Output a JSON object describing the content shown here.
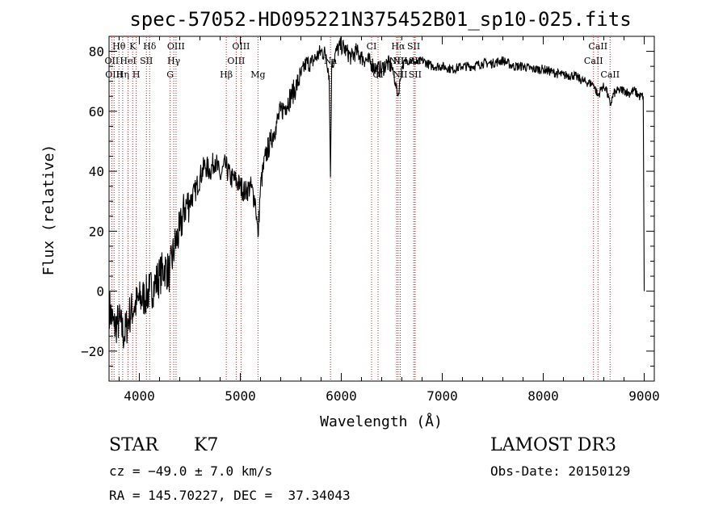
{
  "chart_data": {
    "type": "line",
    "title": "spec-57052-HD095221N375452B01_sp10-025.fits",
    "xlabel": "Wavelength (Å)",
    "ylabel": "Flux (relative)",
    "xlim": [
      3700,
      9100
    ],
    "ylim": [
      -30,
      85
    ],
    "x_ticks": [
      4000,
      5000,
      6000,
      7000,
      8000,
      9000
    ],
    "x_tick_labels": [
      "4000",
      "5000",
      "6000",
      "7000",
      "8000",
      "9000"
    ],
    "y_ticks": [
      -20,
      0,
      20,
      40,
      60,
      80
    ],
    "y_tick_labels": [
      "−20",
      "0",
      "20",
      "40",
      "60",
      "80"
    ],
    "spectrum": {
      "name": "flux",
      "x": [
        3700,
        3750,
        3800,
        3850,
        3900,
        3950,
        4000,
        4050,
        4100,
        4150,
        4200,
        4250,
        4300,
        4350,
        4400,
        4450,
        4500,
        4550,
        4600,
        4650,
        4700,
        4750,
        4800,
        4850,
        4900,
        4950,
        5000,
        5050,
        5100,
        5150,
        5175,
        5200,
        5250,
        5300,
        5350,
        5400,
        5450,
        5500,
        5550,
        5600,
        5650,
        5700,
        5750,
        5800,
        5850,
        5880,
        5893,
        5905,
        5950,
        6000,
        6050,
        6100,
        6150,
        6200,
        6250,
        6300,
        6350,
        6400,
        6450,
        6500,
        6563,
        6600,
        6650,
        6700,
        6750,
        6800,
        6900,
        7000,
        7100,
        7200,
        7300,
        7400,
        7500,
        7600,
        7700,
        7800,
        7900,
        8000,
        8100,
        8200,
        8300,
        8400,
        8500,
        8542,
        8580,
        8620,
        8662,
        8700,
        8750,
        8800,
        8850,
        8900,
        8950,
        8990,
        9000
      ],
      "y": [
        -5,
        -12,
        -10,
        -15,
        -8,
        -5,
        -3,
        -2,
        0,
        2,
        5,
        8,
        6,
        15,
        20,
        28,
        30,
        33,
        38,
        42,
        40,
        44,
        38,
        42,
        38,
        37,
        35,
        33,
        35,
        30,
        18,
        35,
        45,
        50,
        55,
        60,
        62,
        65,
        68,
        72,
        76,
        76,
        78,
        80,
        79,
        72,
        38,
        75,
        80,
        82,
        80,
        78,
        80,
        78,
        77,
        76,
        74,
        74,
        76,
        75,
        65,
        75,
        77,
        77,
        76,
        77,
        75,
        75,
        74,
        75,
        75,
        76,
        76,
        77,
        75,
        75,
        74,
        74,
        73,
        72,
        72,
        70,
        69,
        65,
        68,
        68,
        62,
        66,
        67,
        67,
        66,
        67,
        65,
        65,
        0
      ]
    },
    "lines_top": [
      {
        "label": "Hθ",
        "x": 3798
      },
      {
        "label": "K",
        "x": 3934
      },
      {
        "label": "Hδ",
        "x": 4102
      },
      {
        "label": "OIII",
        "x": 4363
      },
      {
        "label": "OIII",
        "x": 5007
      },
      {
        "label": "CI",
        "x": 6300
      },
      {
        "label": "Hα",
        "x": 6563
      },
      {
        "label": "SII",
        "x": 6717
      },
      {
        "label": "CaII",
        "x": 8542
      }
    ],
    "lines_mid": [
      {
        "label": "OII",
        "x": 3727
      },
      {
        "label": "HeI",
        "x": 3889
      },
      {
        "label": "SII",
        "x": 4070
      },
      {
        "label": "Hγ",
        "x": 4341
      },
      {
        "label": "OIII",
        "x": 4959
      },
      {
        "label": "Na",
        "x": 5893
      },
      {
        "label": "NII",
        "x": 6548
      },
      {
        "label": "NII",
        "x": 6584
      },
      {
        "label": "SII",
        "x": 6731
      },
      {
        "label": "CaII",
        "x": 8498
      }
    ],
    "lines_low": [
      {
        "label": "OIII",
        "x": 3750
      },
      {
        "label": "Hη",
        "x": 3835
      },
      {
        "label": "H",
        "x": 3969
      },
      {
        "label": "G",
        "x": 4305
      },
      {
        "label": "Hβ",
        "x": 4861
      },
      {
        "label": "Mg",
        "x": 5175
      },
      {
        "label": "OI",
        "x": 6364
      },
      {
        "label": "NII",
        "x": 6583
      },
      {
        "label": "SII",
        "x": 6731
      },
      {
        "label": "CaII",
        "x": 8662
      }
    ]
  },
  "info": {
    "object_class": "STAR",
    "subclass": "K7",
    "survey": "LAMOST DR3",
    "cz": "cz = −49.0 ± 7.0 km/s",
    "obs_date": "Obs-Date: 20150129",
    "coords": "RA = 145.70227, DEC =  37.34043"
  },
  "colors": {
    "spectrum": "#000000",
    "line_markers": "#b22222",
    "background": "#ffffff"
  }
}
